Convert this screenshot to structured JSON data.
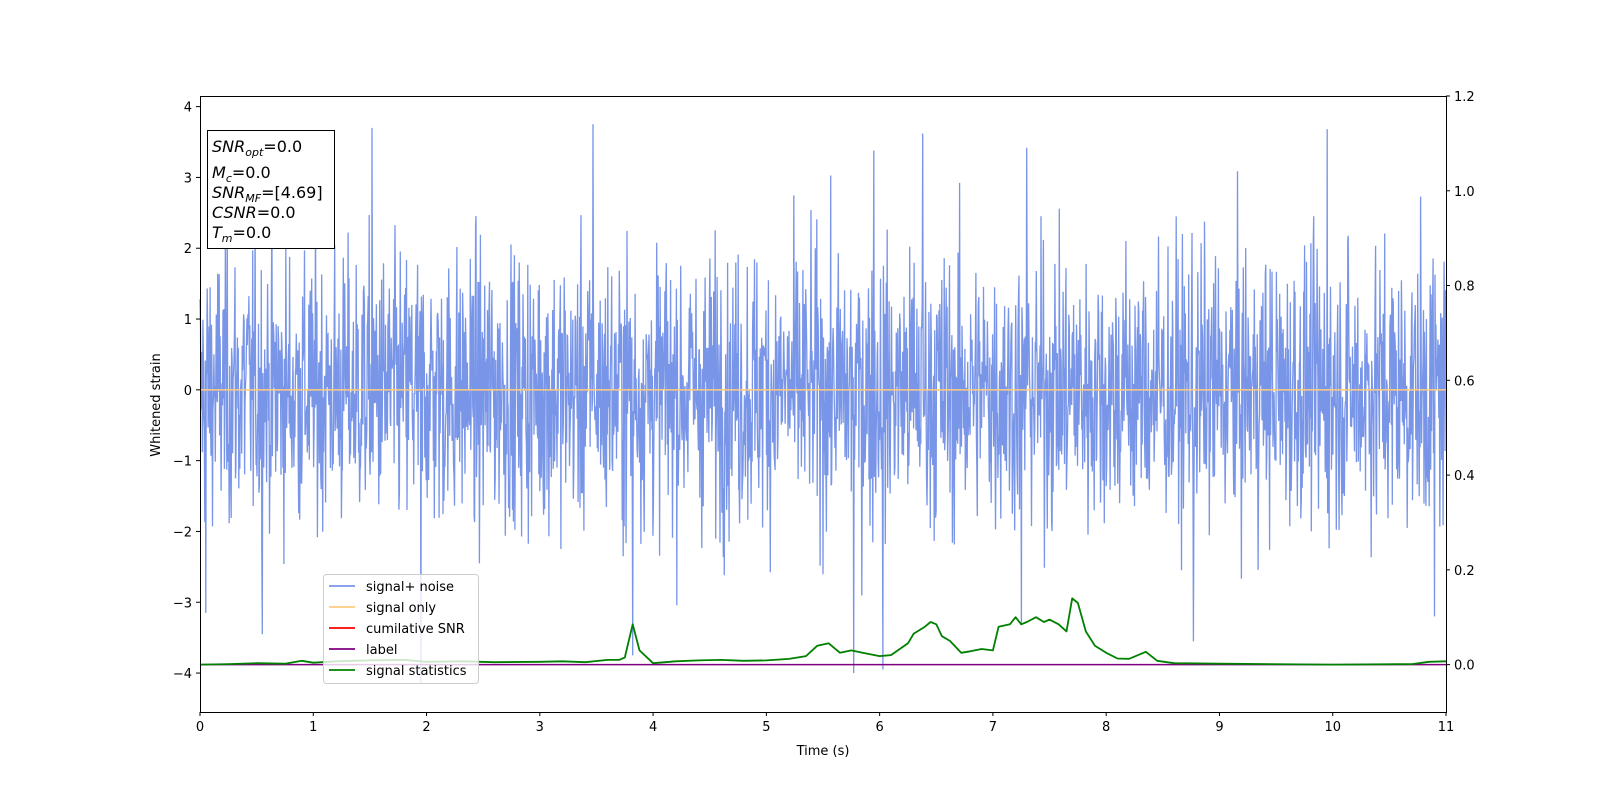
{
  "chart_data": {
    "type": "line",
    "title": "",
    "xlabel": "Time (s)",
    "ylabel": "Whitened strain",
    "xlim": [
      0,
      11
    ],
    "ylim": [
      -4.55,
      4.15
    ],
    "y2lim": [
      -0.1,
      1.2
    ],
    "xticks": [
      "0",
      "1",
      "2",
      "3",
      "4",
      "5",
      "6",
      "7",
      "8",
      "9",
      "10",
      "11"
    ],
    "yticks": [
      "−4",
      "−3",
      "−2",
      "−1",
      "0",
      "1",
      "2",
      "3",
      "4"
    ],
    "y2ticks": [
      "0.0",
      "0.2",
      "0.4",
      "0.6",
      "0.8",
      "1.0",
      "1.2"
    ],
    "grid": false,
    "legend_position": "lower-left",
    "series": [
      {
        "name": "signal+ noise",
        "axis": "left",
        "color": "#7895e8",
        "noise_envelope": {
          "typical_amplitude": 1.6,
          "max": 3.75,
          "min": -4.15
        },
        "peaks": [
          [
            0.55,
            3.7
          ],
          [
            1.52,
            3.7
          ],
          [
            3.47,
            3.75
          ],
          [
            5.95,
            3.38
          ],
          [
            6.38,
            3.62
          ],
          [
            7.3,
            3.42
          ],
          [
            9.95,
            3.68
          ]
        ],
        "troughs": [
          [
            0.05,
            -3.15
          ],
          [
            0.55,
            -3.45
          ],
          [
            1.95,
            -4.15
          ],
          [
            3.82,
            -3.75
          ],
          [
            5.77,
            -4.0
          ],
          [
            6.03,
            -3.95
          ],
          [
            7.25,
            -3.3
          ],
          [
            8.77,
            -3.55
          ],
          [
            10.9,
            -3.2
          ]
        ]
      },
      {
        "name": "signal only",
        "axis": "left",
        "color": "#ffcc80",
        "x": [
          0,
          11
        ],
        "y": [
          0,
          0
        ]
      },
      {
        "name": "cumilative SNR",
        "axis": "left",
        "color": "#ff0000",
        "x": [],
        "y": []
      },
      {
        "name": "label",
        "axis": "right",
        "color": "#800080",
        "x": [
          0,
          11
        ],
        "y": [
          0,
          0
        ]
      },
      {
        "name": "signal statistics",
        "axis": "right",
        "color": "#008000",
        "x": [
          0,
          0.25,
          0.5,
          0.75,
          0.9,
          1.0,
          1.2,
          1.5,
          1.8,
          2.0,
          2.3,
          2.6,
          3.0,
          3.2,
          3.4,
          3.6,
          3.7,
          3.75,
          3.82,
          3.88,
          4.0,
          4.2,
          4.4,
          4.6,
          4.8,
          5.0,
          5.2,
          5.35,
          5.45,
          5.55,
          5.65,
          5.75,
          5.85,
          6.0,
          6.1,
          6.25,
          6.3,
          6.4,
          6.45,
          6.5,
          6.55,
          6.62,
          6.72,
          6.8,
          6.9,
          7.0,
          7.05,
          7.15,
          7.2,
          7.25,
          7.3,
          7.38,
          7.45,
          7.5,
          7.58,
          7.65,
          7.7,
          7.75,
          7.82,
          7.9,
          8.0,
          8.1,
          8.2,
          8.3,
          8.35,
          8.45,
          8.6,
          9.0,
          10.0,
          10.7,
          10.85,
          11.0
        ],
        "y": [
          0.0,
          0.001,
          0.003,
          0.002,
          0.008,
          0.004,
          0.007,
          0.009,
          0.01,
          0.006,
          0.007,
          0.005,
          0.006,
          0.007,
          0.005,
          0.01,
          0.01,
          0.015,
          0.085,
          0.03,
          0.003,
          0.007,
          0.009,
          0.01,
          0.008,
          0.009,
          0.012,
          0.018,
          0.04,
          0.045,
          0.025,
          0.03,
          0.025,
          0.018,
          0.02,
          0.045,
          0.065,
          0.08,
          0.09,
          0.085,
          0.06,
          0.05,
          0.025,
          0.028,
          0.033,
          0.03,
          0.08,
          0.085,
          0.1,
          0.085,
          0.09,
          0.1,
          0.09,
          0.095,
          0.085,
          0.07,
          0.14,
          0.13,
          0.07,
          0.04,
          0.025,
          0.013,
          0.012,
          0.022,
          0.027,
          0.008,
          0.003,
          0.002,
          0.0,
          0.001,
          0.006,
          0.007
        ]
      }
    ]
  },
  "info_box": {
    "snr_opt": {
      "main": "SNR",
      "sub": "opt",
      "rest": "=0.0"
    },
    "mc": {
      "main": "M",
      "sub": "c",
      "rest": "=0.0"
    },
    "snr_mf": {
      "main": "SNR",
      "sub": "MF",
      "rest": "=[4.69]"
    },
    "csnr": {
      "main": "CSNR",
      "rest": "=0.0"
    },
    "tm": {
      "main": "T",
      "sub": "m",
      "rest": "=0.0"
    }
  }
}
